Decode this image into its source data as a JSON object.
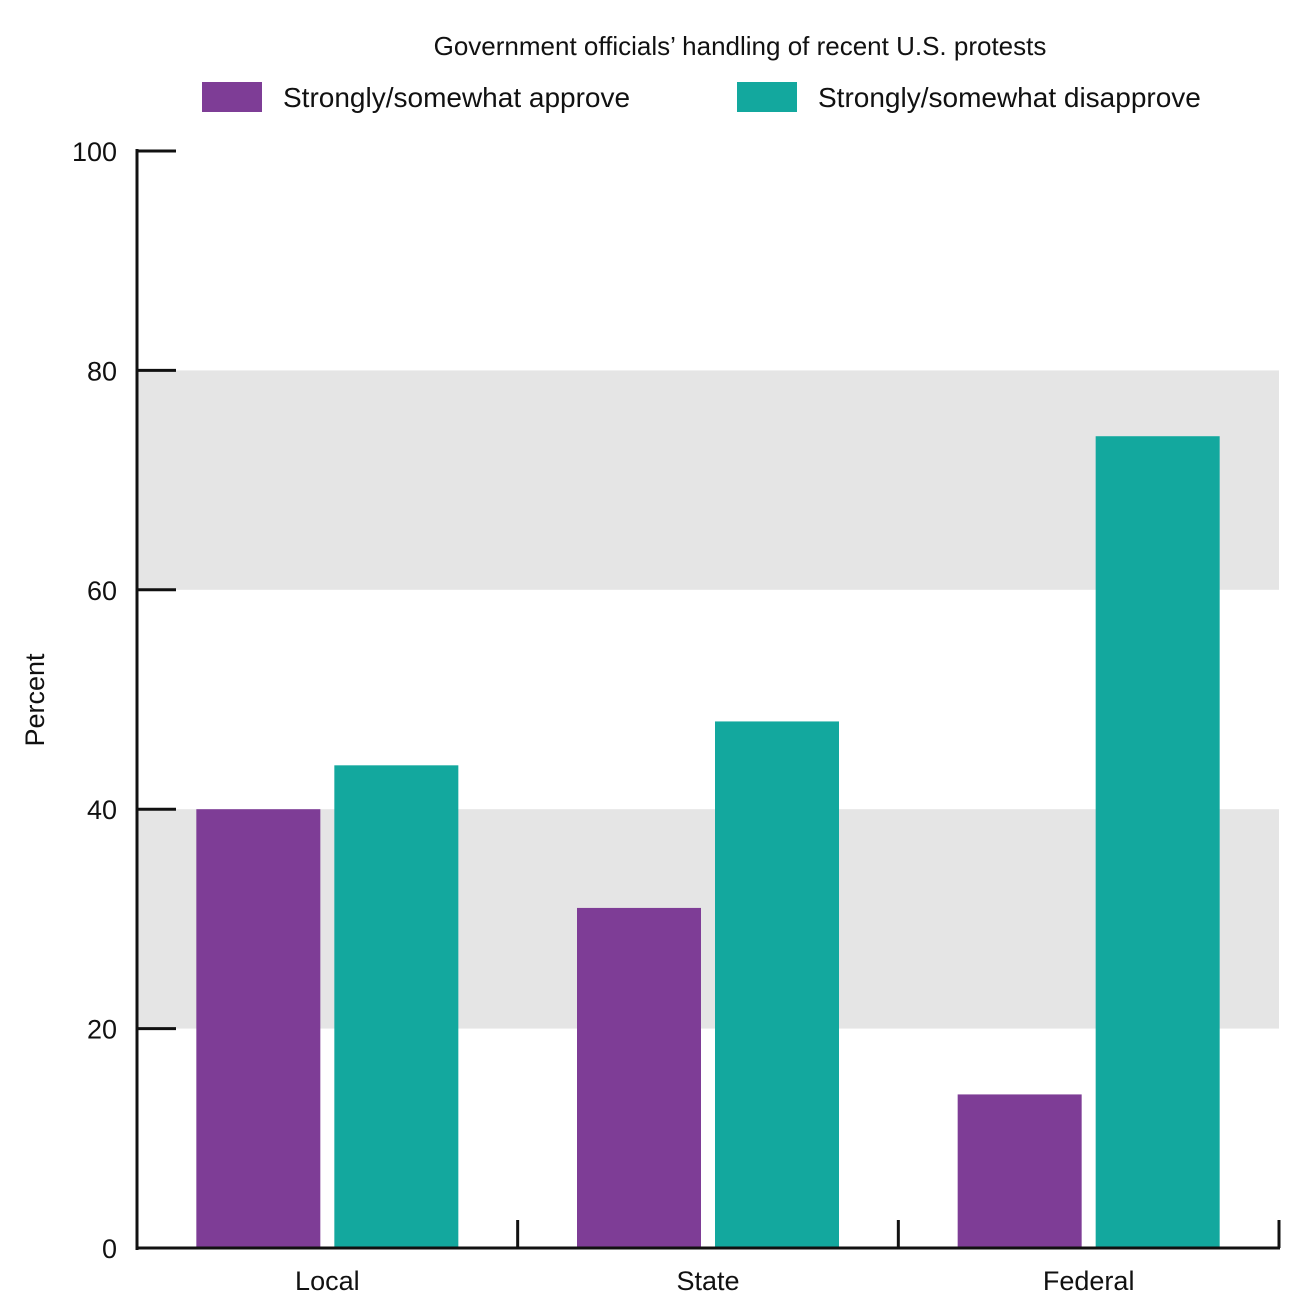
{
  "chart_data": {
    "type": "bar",
    "title": "Government officials’ handling of recent U.S. protests",
    "xlabel": "",
    "ylabel": "Percent",
    "ylim": [
      0,
      100
    ],
    "yticks": [
      "0",
      "20",
      "40",
      "60",
      "80",
      "100"
    ],
    "categories": [
      "Local",
      "State",
      "Federal"
    ],
    "series": [
      {
        "name": "Strongly/somewhat approve",
        "color": "#7e3d96",
        "values": [
          40,
          31,
          14
        ]
      },
      {
        "name": "Strongly/somewhat disapprove",
        "color": "#13a89e",
        "values": [
          44,
          48,
          74
        ]
      }
    ],
    "bands": [
      [
        20,
        40
      ],
      [
        60,
        80
      ]
    ],
    "band_color": "#e5e5e5",
    "legend_position": "top"
  }
}
